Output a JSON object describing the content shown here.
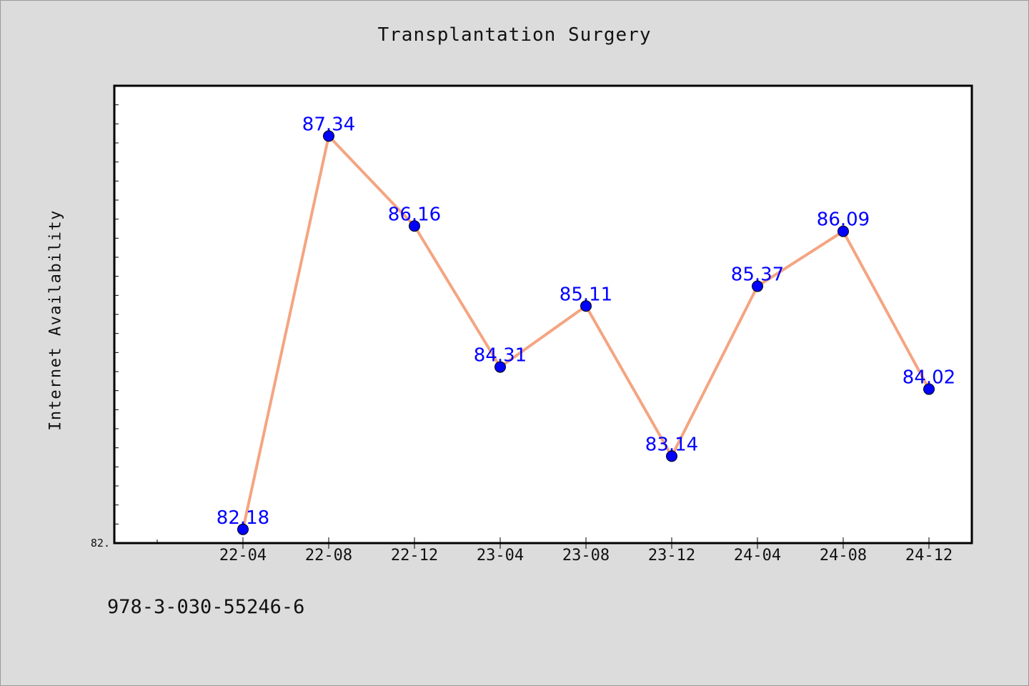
{
  "chart_data": {
    "type": "line",
    "title": "Transplantation Surgery",
    "xlabel": "",
    "ylabel": "Internet Availability",
    "categories": [
      "22-04",
      "22-08",
      "22-12",
      "23-04",
      "23-08",
      "23-12",
      "24-04",
      "24-08",
      "24-12"
    ],
    "series": [
      {
        "values": [
          82.18,
          87.34,
          86.16,
          84.31,
          85.11,
          83.14,
          85.37,
          86.09,
          84.02
        ],
        "line_color": "#f4a582",
        "marker_color": "#0000ff",
        "label_color": "#0000ff"
      }
    ],
    "ylim": [
      82.0,
      88.0
    ],
    "y_tick_label": "82.",
    "grid": false,
    "legend": "none"
  },
  "footer": {
    "code": "978-3-030-55246-6"
  },
  "colors": {
    "background": "#dcdcdc",
    "plot_area": "#ffffff",
    "axis": "#000000"
  }
}
